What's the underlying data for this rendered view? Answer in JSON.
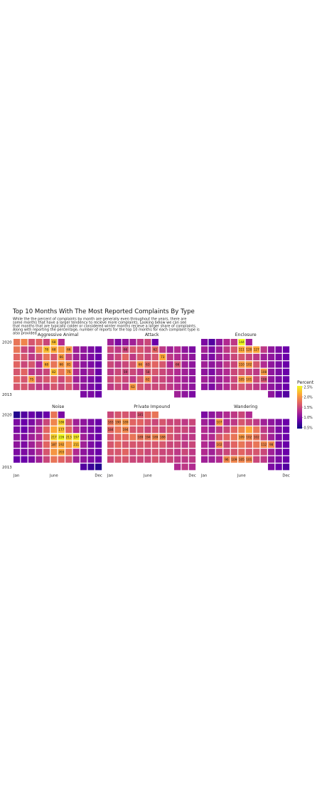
{
  "chart_data": {
    "type": "heatmap",
    "title": "Top 10 Months With The Most Reported Complaints By Type",
    "subtitle_lines": [
      "While the the percent of complaints by month are generally even throughout the years, there are",
      "some months that have a larger tendency to recieve more complaints. Looking below we can see",
      "that months that are typically colder or considered winter months recieve a larger share of complaints.",
      "Along with reporting the percentage, number of reports for the top 10 months for each complaint type is",
      "also provided."
    ],
    "x_tick_labels": [
      "Jan",
      "June",
      "Dec"
    ],
    "y_tick_labels": [
      "2020",
      "2013"
    ],
    "legend": {
      "title": "Percent",
      "ticks": [
        "2.5%",
        "2.0%",
        "1.5%",
        "1.0%",
        "0.5%"
      ],
      "placement": "right",
      "range": [
        0.5,
        2.5
      ]
    },
    "color_scale": [
      "#0d0887",
      "#6a00a8",
      "#b12a90",
      "#e16462",
      "#fca636",
      "#f0f921"
    ],
    "panels": [
      {
        "name": "Aggressive Animal",
        "grid": [
          [
            1.8,
            1.9,
            1.6,
            1.7,
            1.5,
            2.2,
            1.3,
            null,
            null,
            null,
            null,
            null
          ],
          [
            1.8,
            1.5,
            1.4,
            1.9,
            2.2,
            2.1,
            2.0,
            2.0,
            1.2,
            1.1,
            1.0,
            0.9
          ],
          [
            1.7,
            1.6,
            1.4,
            1.5,
            1.8,
            1.6,
            2.0,
            1.5,
            1.2,
            1.1,
            1.0,
            0.9
          ],
          [
            1.7,
            1.5,
            1.6,
            1.3,
            2.1,
            1.8,
            2.0,
            2.0,
            1.3,
            1.1,
            1.0,
            0.9
          ],
          [
            1.6,
            1.7,
            1.4,
            1.4,
            1.5,
            2.2,
            1.8,
            2.0,
            1.3,
            1.1,
            1.2,
            0.9
          ],
          [
            1.7,
            1.6,
            2.0,
            1.5,
            1.6,
            1.7,
            1.5,
            1.7,
            1.2,
            1.1,
            1.0,
            0.9
          ],
          [
            1.6,
            1.6,
            1.5,
            1.4,
            1.4,
            1.6,
            1.5,
            1.6,
            1.3,
            1.1,
            1.0,
            0.9
          ],
          [
            null,
            null,
            null,
            null,
            null,
            null,
            null,
            null,
            null,
            1.0,
            1.0,
            0.9
          ]
        ],
        "labels": [
          {
            "row": 0,
            "col": 5,
            "text": "68"
          },
          {
            "row": 1,
            "col": 4,
            "text": "78"
          },
          {
            "row": 1,
            "col": 5,
            "text": "68"
          },
          {
            "row": 1,
            "col": 7,
            "text": "66"
          },
          {
            "row": 2,
            "col": 6,
            "text": "66"
          },
          {
            "row": 3,
            "col": 4,
            "text": "68"
          },
          {
            "row": 3,
            "col": 6,
            "text": "66"
          },
          {
            "row": 3,
            "col": 7,
            "text": "81"
          },
          {
            "row": 4,
            "col": 5,
            "text": "82"
          },
          {
            "row": 4,
            "col": 7,
            "text": "75"
          },
          {
            "row": 5,
            "col": 2,
            "text": "75"
          }
        ]
      },
      {
        "name": "Attack",
        "grid": [
          [
            1.2,
            1.0,
            1.1,
            1.2,
            1.4,
            1.5,
            0.9,
            null,
            null,
            null,
            null,
            null
          ],
          [
            1.5,
            1.4,
            1.5,
            1.6,
            1.6,
            1.5,
            1.7,
            1.4,
            1.2,
            1.3,
            1.1,
            1.0
          ],
          [
            1.4,
            1.5,
            1.7,
            1.4,
            1.6,
            1.5,
            1.6,
            2.1,
            1.4,
            1.3,
            1.2,
            1.1
          ],
          [
            1.5,
            1.4,
            1.5,
            1.6,
            2.0,
            1.7,
            1.7,
            1.6,
            1.3,
            1.6,
            1.2,
            1.1
          ],
          [
            1.4,
            1.5,
            1.5,
            1.5,
            1.4,
            1.6,
            1.6,
            1.5,
            1.4,
            1.3,
            1.2,
            1.1
          ],
          [
            1.5,
            1.6,
            1.5,
            1.4,
            1.6,
            1.9,
            1.5,
            1.5,
            1.4,
            1.3,
            1.2,
            1.1
          ],
          [
            1.4,
            1.5,
            1.4,
            2.0,
            1.6,
            1.5,
            1.5,
            1.5,
            1.4,
            1.3,
            1.2,
            1.1
          ],
          [
            null,
            null,
            null,
            null,
            null,
            null,
            null,
            null,
            null,
            1.2,
            1.1,
            1.0
          ]
        ],
        "labels": [
          {
            "row": 1,
            "col": 2,
            "text": "66"
          },
          {
            "row": 1,
            "col": 6,
            "text": "62"
          },
          {
            "row": 2,
            "col": 7,
            "text": "73"
          },
          {
            "row": 3,
            "col": 4,
            "text": "66"
          },
          {
            "row": 3,
            "col": 5,
            "text": "63"
          },
          {
            "row": 3,
            "col": 9,
            "text": "66"
          },
          {
            "row": 4,
            "col": 2,
            "text": "59"
          },
          {
            "row": 4,
            "col": 5,
            "text": "58"
          },
          {
            "row": 5,
            "col": 5,
            "text": "62"
          },
          {
            "row": 6,
            "col": 3,
            "text": "63"
          }
        ]
      },
      {
        "name": "Enclosure",
        "grid": [
          [
            1.0,
            0.8,
            1.1,
            1.3,
            1.4,
            2.5,
            1.2,
            null,
            null,
            null,
            null,
            null
          ],
          [
            1.2,
            1.0,
            1.2,
            1.4,
            1.6,
            2.1,
            2.0,
            2.1,
            1.4,
            1.1,
            1.0,
            0.9
          ],
          [
            1.1,
            1.0,
            1.2,
            1.3,
            1.5,
            1.6,
            1.5,
            1.4,
            1.2,
            1.1,
            1.0,
            0.9
          ],
          [
            1.2,
            1.1,
            1.2,
            1.4,
            1.5,
            2.0,
            2.0,
            1.6,
            1.3,
            1.1,
            1.0,
            0.9
          ],
          [
            1.1,
            1.0,
            1.2,
            1.3,
            1.5,
            1.6,
            1.5,
            1.4,
            2.0,
            1.1,
            1.0,
            0.9
          ],
          [
            1.2,
            1.1,
            1.2,
            1.3,
            1.5,
            2.0,
            2.0,
            1.5,
            1.6,
            1.1,
            1.0,
            0.9
          ],
          [
            1.1,
            1.0,
            1.2,
            1.3,
            1.5,
            1.6,
            1.5,
            1.4,
            1.3,
            1.1,
            1.0,
            0.9
          ],
          [
            null,
            null,
            null,
            null,
            null,
            null,
            null,
            null,
            null,
            1.1,
            0.9,
            0.8
          ]
        ],
        "labels": [
          {
            "row": 0,
            "col": 5,
            "text": "144"
          },
          {
            "row": 1,
            "col": 5,
            "text": "111"
          },
          {
            "row": 1,
            "col": 6,
            "text": "120"
          },
          {
            "row": 1,
            "col": 7,
            "text": "127"
          },
          {
            "row": 3,
            "col": 5,
            "text": "110"
          },
          {
            "row": 3,
            "col": 6,
            "text": "102"
          },
          {
            "row": 4,
            "col": 8,
            "text": "108"
          },
          {
            "row": 5,
            "col": 5,
            "text": "105"
          },
          {
            "row": 5,
            "col": 6,
            "text": "101"
          },
          {
            "row": 5,
            "col": 8,
            "text": "108"
          }
        ]
      },
      {
        "name": "Noise",
        "grid": [
          [
            0.6,
            0.8,
            0.9,
            0.8,
            0.9,
            1.8,
            1.0,
            null,
            null,
            null,
            null,
            null
          ],
          [
            1.0,
            0.9,
            1.0,
            1.2,
            1.5,
            1.9,
            2.3,
            1.6,
            1.2,
            1.1,
            1.0,
            0.9
          ],
          [
            1.0,
            0.9,
            1.1,
            1.3,
            1.7,
            2.1,
            2.2,
            1.7,
            1.3,
            1.1,
            1.0,
            0.9
          ],
          [
            1.1,
            1.0,
            1.2,
            1.3,
            1.7,
            2.3,
            2.5,
            2.3,
            2.4,
            1.2,
            1.0,
            0.9
          ],
          [
            1.1,
            1.0,
            1.2,
            1.4,
            1.7,
            2.0,
            2.1,
            2.0,
            2.2,
            1.2,
            1.0,
            0.9
          ],
          [
            1.0,
            1.0,
            1.1,
            1.3,
            1.6,
            2.0,
            2.1,
            1.8,
            1.3,
            1.1,
            1.0,
            0.9
          ],
          [
            0.9,
            0.9,
            1.0,
            1.2,
            1.5,
            1.8,
            1.7,
            1.6,
            1.2,
            1.1,
            1.0,
            0.9
          ],
          [
            null,
            null,
            null,
            null,
            null,
            null,
            null,
            null,
            null,
            0.8,
            0.7,
            0.6
          ]
        ],
        "labels": [
          {
            "row": 1,
            "col": 6,
            "text": "186"
          },
          {
            "row": 2,
            "col": 6,
            "text": "177"
          },
          {
            "row": 3,
            "col": 5,
            "text": "217"
          },
          {
            "row": 3,
            "col": 6,
            "text": "226"
          },
          {
            "row": 3,
            "col": 7,
            "text": "213"
          },
          {
            "row": 3,
            "col": 8,
            "text": "197"
          },
          {
            "row": 4,
            "col": 5,
            "text": "187"
          },
          {
            "row": 4,
            "col": 6,
            "text": "192"
          },
          {
            "row": 4,
            "col": 8,
            "text": "211"
          },
          {
            "row": 5,
            "col": 6,
            "text": "203"
          }
        ]
      },
      {
        "name": "Private Impound",
        "grid": [
          [
            1.5,
            1.6,
            1.6,
            1.5,
            1.6,
            1.7,
            1.8,
            null,
            null,
            null,
            null,
            null
          ],
          [
            1.8,
            1.9,
            2.0,
            1.7,
            1.7,
            1.6,
            1.5,
            1.6,
            1.5,
            1.5,
            1.4,
            1.5
          ],
          [
            1.7,
            1.8,
            1.9,
            1.6,
            1.6,
            1.5,
            1.6,
            1.5,
            1.6,
            1.5,
            1.5,
            1.4
          ],
          [
            1.6,
            1.7,
            1.7,
            1.8,
            1.8,
            1.8,
            1.9,
            1.9,
            1.6,
            1.5,
            1.4,
            1.4
          ],
          [
            1.6,
            1.7,
            1.6,
            1.6,
            1.6,
            1.6,
            1.6,
            1.6,
            1.5,
            1.5,
            1.4,
            1.5
          ],
          [
            1.6,
            1.6,
            1.7,
            1.5,
            1.6,
            1.5,
            1.6,
            1.5,
            1.5,
            1.4,
            1.5,
            1.4
          ],
          [
            1.5,
            1.6,
            1.6,
            1.5,
            1.5,
            1.5,
            1.6,
            1.5,
            1.5,
            1.4,
            1.4,
            1.4
          ],
          [
            null,
            null,
            null,
            null,
            null,
            null,
            null,
            null,
            null,
            1.3,
            1.4,
            1.3
          ]
        ],
        "labels": [
          {
            "row": 1,
            "col": 0,
            "text": "183"
          },
          {
            "row": 1,
            "col": 1,
            "text": "190"
          },
          {
            "row": 1,
            "col": 2,
            "text": "189"
          },
          {
            "row": 2,
            "col": 0,
            "text": "184"
          },
          {
            "row": 2,
            "col": 2,
            "text": "194"
          },
          {
            "row": 3,
            "col": 4,
            "text": "189"
          },
          {
            "row": 3,
            "col": 5,
            "text": "194"
          },
          {
            "row": 3,
            "col": 6,
            "text": "189"
          },
          {
            "row": 3,
            "col": 7,
            "text": "188"
          },
          {
            "row": 0,
            "col": 4,
            "text": "181"
          }
        ]
      },
      {
        "name": "Wandering",
        "grid": [
          [
            1.0,
            1.1,
            1.2,
            1.3,
            1.4,
            1.5,
            1.3,
            null,
            null,
            null,
            null,
            null
          ],
          [
            1.2,
            1.1,
            2.0,
            1.3,
            1.4,
            1.6,
            1.5,
            1.4,
            1.2,
            1.1,
            1.0,
            0.9
          ],
          [
            1.3,
            1.2,
            1.4,
            1.5,
            1.7,
            1.9,
            2.1,
            1.8,
            1.4,
            1.2,
            1.0,
            0.9
          ],
          [
            1.3,
            1.3,
            1.6,
            1.7,
            1.8,
            2.0,
            1.9,
            1.8,
            1.5,
            1.2,
            1.0,
            0.9
          ],
          [
            1.3,
            1.2,
            1.9,
            1.5,
            1.7,
            1.8,
            1.7,
            1.8,
            1.9,
            1.9,
            1.0,
            0.9
          ],
          [
            1.3,
            1.2,
            1.4,
            1.5,
            1.6,
            1.7,
            1.6,
            1.6,
            1.5,
            1.2,
            1.0,
            0.9
          ],
          [
            1.2,
            1.2,
            1.3,
            1.9,
            1.9,
            1.9,
            1.9,
            1.5,
            1.4,
            1.1,
            1.0,
            0.9
          ],
          [
            null,
            null,
            null,
            null,
            null,
            null,
            null,
            null,
            null,
            1.0,
            0.9,
            0.8
          ]
        ],
        "labels": [
          {
            "row": 1,
            "col": 2,
            "text": "107"
          },
          {
            "row": 3,
            "col": 5,
            "text": "109"
          },
          {
            "row": 3,
            "col": 6,
            "text": "102"
          },
          {
            "row": 3,
            "col": 7,
            "text": "102"
          },
          {
            "row": 4,
            "col": 2,
            "text": "102"
          },
          {
            "row": 4,
            "col": 8,
            "text": "112"
          },
          {
            "row": 4,
            "col": 9,
            "text": "98"
          },
          {
            "row": 6,
            "col": 3,
            "text": "96"
          },
          {
            "row": 6,
            "col": 4,
            "text": "109"
          },
          {
            "row": 6,
            "col": 5,
            "text": "105"
          },
          {
            "row": 6,
            "col": 6,
            "text": "101"
          }
        ]
      }
    ]
  }
}
